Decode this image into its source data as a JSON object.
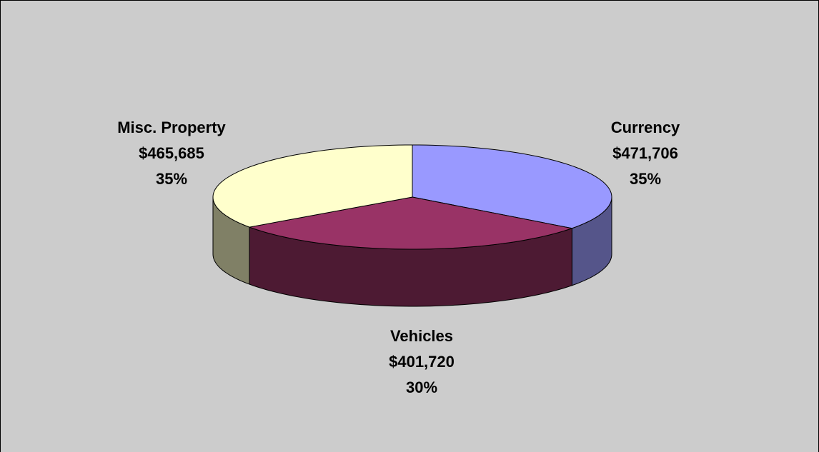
{
  "chart_data": {
    "type": "pie3d",
    "categories": [
      "Currency",
      "Vehicles",
      "Misc. Property"
    ],
    "values": [
      471706,
      401720,
      465685
    ],
    "value_labels": [
      "$471,706",
      "$401,720",
      "$465,685"
    ],
    "percents": [
      35,
      30,
      35
    ],
    "percent_labels": [
      "35%",
      "30%",
      "35%"
    ],
    "colors": [
      "#9999ff",
      "#993366",
      "#ffffcc"
    ],
    "side_colors": [
      "#55558a",
      "#4d1a33",
      "#808066"
    ]
  }
}
